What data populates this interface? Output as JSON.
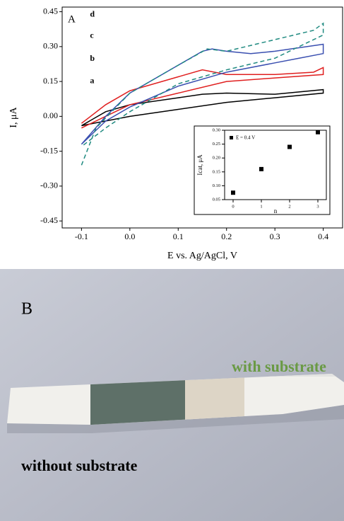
{
  "chart_data": [
    {
      "type": "line",
      "panel_label": "A",
      "xlabel": "E vs. Ag/AgCl, V",
      "ylabel": "I, μA",
      "xlim": [
        -0.14,
        0.44
      ],
      "xticks": [
        -0.1,
        {
          "value": 0,
          "label": "0.0"
        },
        0.1,
        0.2,
        0.3,
        0.4
      ],
      "ylim": [
        -0.48,
        0.47
      ],
      "yticks": [
        {
          "value": -0.45,
          "label": "-0.45"
        },
        {
          "value": -0.3,
          "label": "-0.30"
        },
        {
          "value": -0.15,
          "label": "-0.15"
        },
        {
          "value": 0,
          "label": "0.00"
        },
        {
          "value": 0.15,
          "label": "0.15"
        },
        {
          "value": 0.3,
          "label": "0.30"
        },
        {
          "value": 0.45,
          "label": "0.45"
        }
      ],
      "series": [
        {
          "name": "a",
          "color": "#000000",
          "dash": false,
          "x": [
            -0.1,
            -0.05,
            0,
            0.1,
            0.15,
            0.2,
            0.3,
            0.4,
            0.4,
            0.3,
            0.2,
            0.1,
            0,
            -0.1
          ],
          "values": [
            -0.04,
            0.02,
            0.05,
            0.08,
            0.095,
            0.1,
            0.095,
            0.115,
            0.1,
            0.08,
            0.06,
            0.03,
            0.0,
            -0.04
          ]
        },
        {
          "name": "b",
          "color": "#e02020",
          "dash": false,
          "x": [
            -0.1,
            -0.05,
            0,
            0.1,
            0.15,
            0.2,
            0.3,
            0.38,
            0.4,
            0.4,
            0.3,
            0.2,
            0.1,
            0,
            -0.05,
            -0.1
          ],
          "values": [
            -0.03,
            0.05,
            0.11,
            0.17,
            0.2,
            0.18,
            0.18,
            0.19,
            0.21,
            0.18,
            0.165,
            0.15,
            0.1,
            0.05,
            0.0,
            -0.05
          ]
        },
        {
          "name": "c",
          "color": "#3a4fb0",
          "dash": false,
          "x": [
            -0.1,
            -0.05,
            0,
            0.1,
            0.15,
            0.17,
            0.2,
            0.25,
            0.3,
            0.4,
            0.4,
            0.35,
            0.3,
            0.2,
            0.1,
            0,
            -0.05,
            -0.1
          ],
          "values": [
            -0.12,
            0.0,
            0.1,
            0.22,
            0.28,
            0.29,
            0.28,
            0.27,
            0.28,
            0.31,
            0.27,
            0.25,
            0.23,
            0.19,
            0.13,
            0.04,
            -0.02,
            -0.12
          ]
        },
        {
          "name": "d",
          "color": "#1f8a80",
          "dash": true,
          "x": [
            -0.1,
            -0.07,
            0,
            0.1,
            0.16,
            0.2,
            0.3,
            0.38,
            0.4,
            0.4,
            0.3,
            0.2,
            0.1,
            0,
            -0.05,
            -0.1
          ],
          "values": [
            -0.21,
            -0.05,
            0.1,
            0.22,
            0.29,
            0.28,
            0.33,
            0.37,
            0.4,
            0.35,
            0.25,
            0.2,
            0.14,
            0.02,
            -0.05,
            -0.13
          ]
        }
      ]
    },
    {
      "type": "scatter",
      "xlabel": "n",
      "ylabel": "Icat, μA",
      "xlim": [
        -0.3,
        3.3
      ],
      "xticks": [
        0,
        1,
        2,
        3
      ],
      "ylim": [
        0.05,
        0.3
      ],
      "yticks": [
        {
          "value": 0.05,
          "label": "0.05"
        },
        {
          "value": 0.1,
          "label": "0.10"
        },
        {
          "value": 0.15,
          "label": "0.15"
        },
        {
          "value": 0.2,
          "label": "0.20"
        },
        {
          "value": 0.25,
          "label": "0.25"
        },
        {
          "value": 0.3,
          "label": "0.30"
        }
      ],
      "series": [
        {
          "name": "E = 0.4 V",
          "color": "#000000",
          "x": [
            0,
            1,
            2,
            3
          ],
          "values": [
            0.075,
            0.16,
            0.24,
            0.293
          ]
        }
      ]
    }
  ],
  "photo": {
    "label": "B",
    "with_label": "with substrate",
    "without_label": "without substrate"
  }
}
